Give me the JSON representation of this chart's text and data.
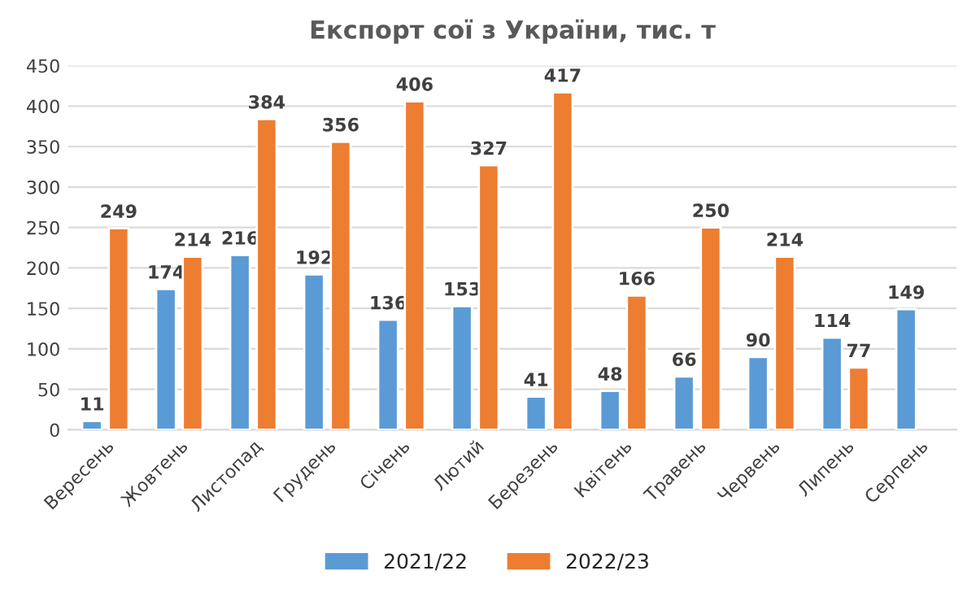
{
  "chart_data": {
    "type": "bar",
    "title": "Експорт сої з України, тис. т",
    "categories": [
      "Вересень",
      "Жовтень",
      "Листопад",
      "Грудень",
      "Січень",
      "Лютий",
      "Березень",
      "Квітень",
      "Травень",
      "Червень",
      "Липень",
      "Серпень"
    ],
    "series": [
      {
        "name": "2021/22",
        "color": "#5b9bd5",
        "values": [
          11,
          174,
          216,
          192,
          136,
          153,
          41,
          48,
          66,
          90,
          114,
          149
        ]
      },
      {
        "name": "2022/23",
        "color": "#ed7d31",
        "values": [
          249,
          214,
          384,
          356,
          406,
          327,
          417,
          166,
          250,
          214,
          77,
          null
        ]
      }
    ],
    "ylim": [
      0,
      450
    ],
    "yticks": [
      0,
      50,
      100,
      150,
      200,
      250,
      300,
      350,
      400,
      450
    ],
    "grid": "y",
    "legend": "bottom",
    "data_labels": true
  }
}
